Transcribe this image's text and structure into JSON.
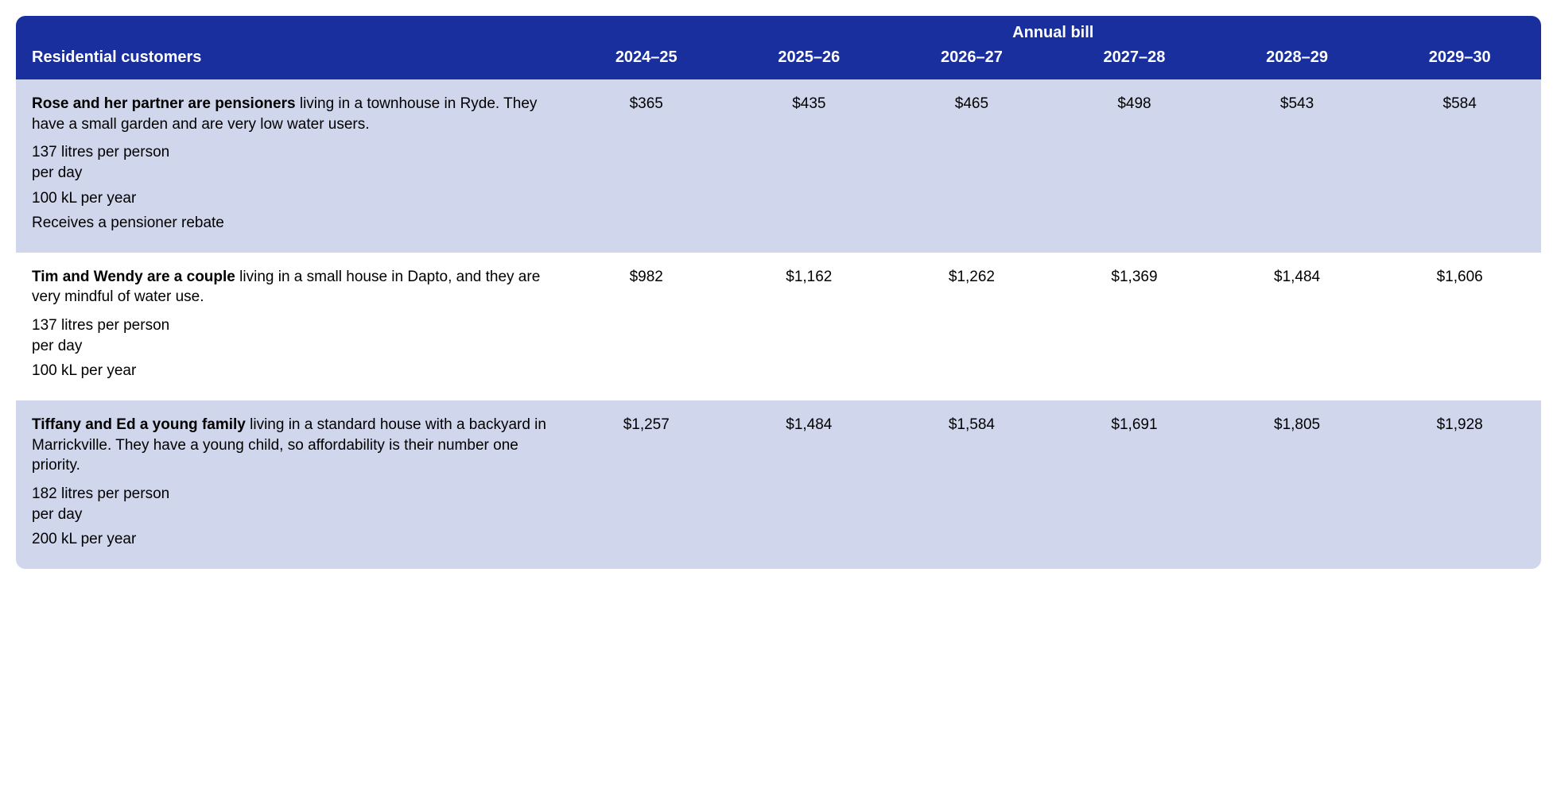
{
  "colors": {
    "header_bg": "#1a2f9e",
    "header_fg": "#ffffff",
    "row_alt_bg": "#d0d6ec",
    "row_plain_bg": "#ffffff",
    "text": "#000000"
  },
  "type": "table",
  "header": {
    "spanning_label": "Annual bill",
    "row_label": "Residential customers",
    "years": [
      "2024–25",
      "2025–26",
      "2026–27",
      "2027–28",
      "2028–29",
      "2029–30"
    ]
  },
  "rows": [
    {
      "alt": true,
      "lead": "Rose and her partner are pensioners",
      "rest": " living in a townhouse in Ryde. They have a small garden and are very low water users.",
      "meta1a": "137 litres per person",
      "meta1b": "per day",
      "meta2": "100 kL per year",
      "meta3": " Receives a pensioner rebate",
      "values": [
        "$365",
        "$435",
        "$465",
        "$498",
        "$543",
        "$584"
      ]
    },
    {
      "alt": false,
      "lead": "Tim and Wendy are a couple",
      "rest": " living in a small house in Dapto, and they are very mindful of water use.",
      "meta1a": "137 litres per person",
      "meta1b": "per day",
      "meta2": "100 kL per year",
      "meta3": "",
      "values": [
        "$982",
        "$1,162",
        "$1,262",
        "$1,369",
        "$1,484",
        "$1,606"
      ]
    },
    {
      "alt": true,
      "lead": "Tiffany and Ed a young family",
      "rest": " living in a standard house with a backyard in Marrickville. They have a young child, so affordability is their number one priority.",
      "meta1a": "182 litres per person",
      "meta1b": "per day",
      "meta2": "200 kL per year",
      "meta3": "",
      "values": [
        "$1,257",
        "$1,484",
        "$1,584",
        "$1,691",
        "$1,805",
        "$1,928"
      ]
    }
  ]
}
